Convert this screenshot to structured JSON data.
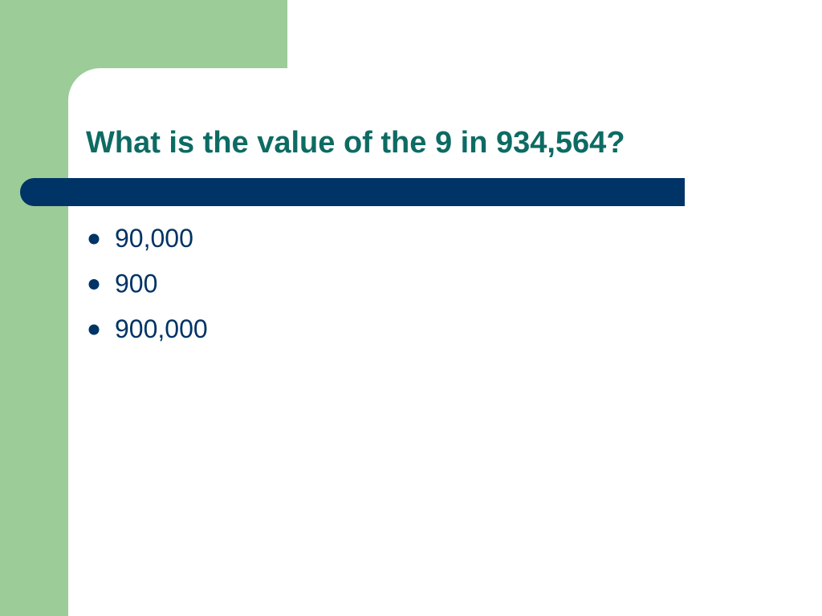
{
  "title": "What is the value of the 9 in 934,564?",
  "bullets": [
    "90,000",
    "900",
    "900,000"
  ]
}
